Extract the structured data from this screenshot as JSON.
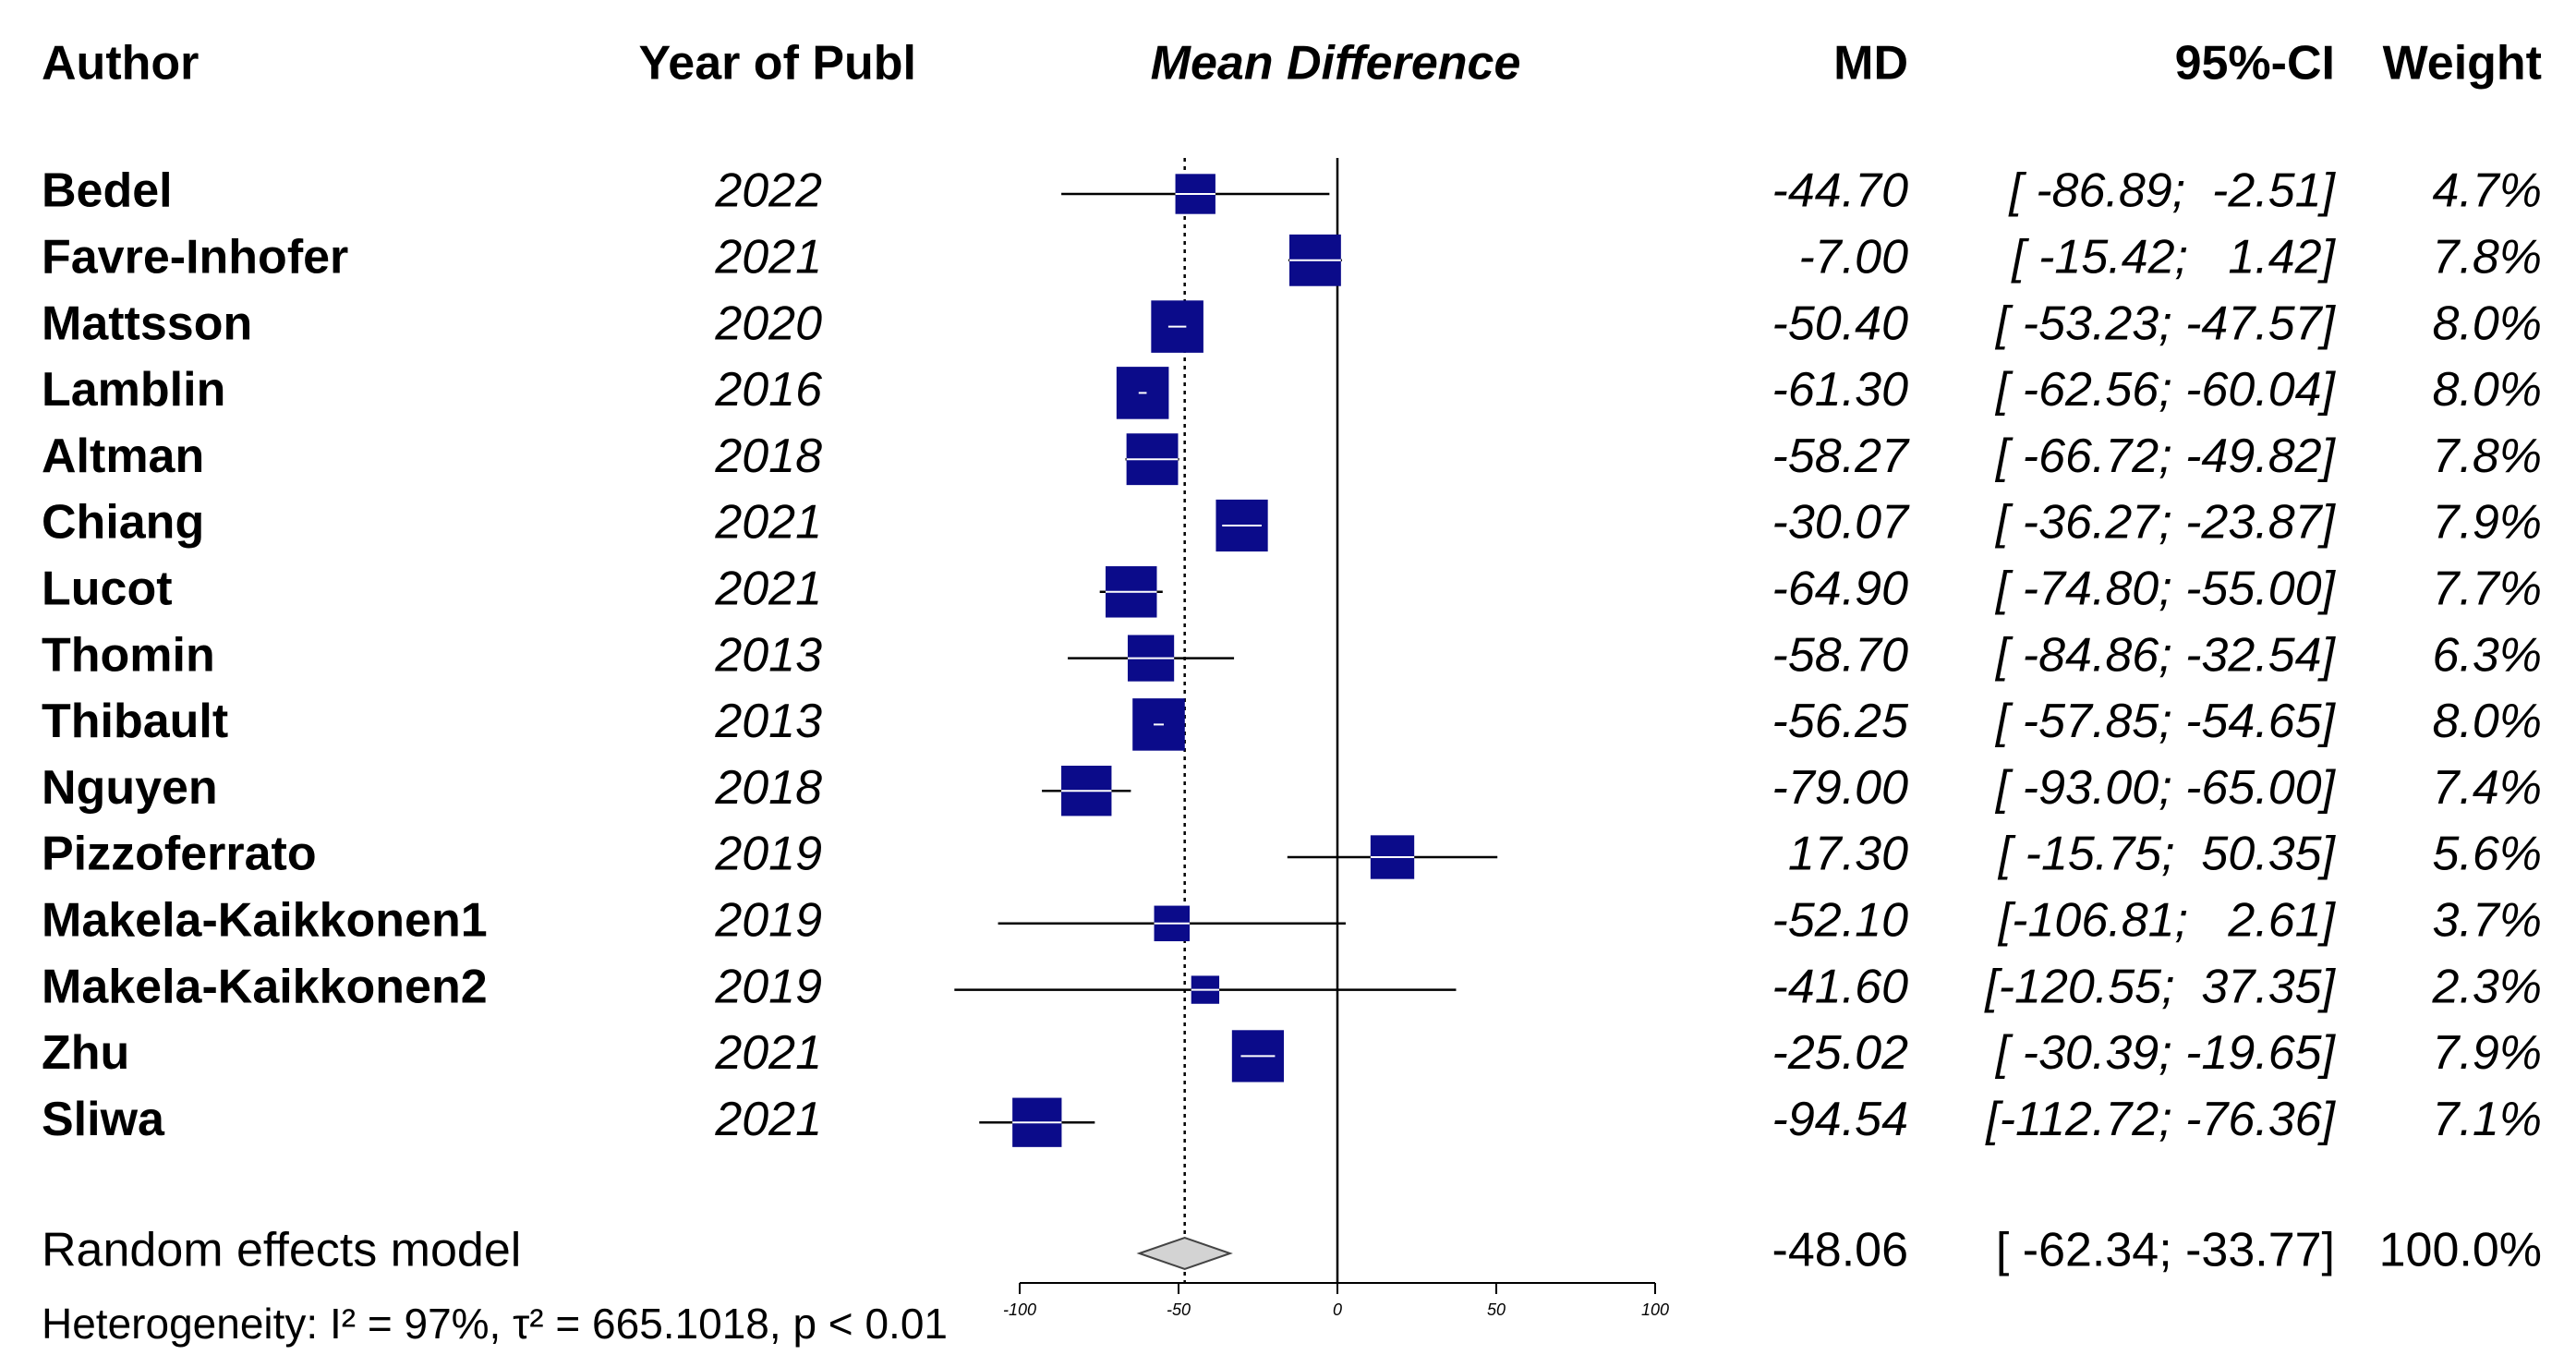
{
  "chart_data": {
    "type": "forest",
    "columns": {
      "author": "Author",
      "year": "Year of Publ",
      "plot": "Mean Difference",
      "md": "MD",
      "ci": "95%-CI",
      "weight": "Weight"
    },
    "categories": [
      "Bedel",
      "Favre-Inhofer",
      "Mattsson",
      "Lamblin",
      "Altman",
      "Chiang",
      "Lucot",
      "Thomin",
      "Thibault",
      "Nguyen",
      "Pizzoferrato",
      "Makela-Kaikkonen1",
      "Makela-Kaikkonen2",
      "Zhu",
      "Sliwa"
    ],
    "years": [
      "2022",
      "2021",
      "2020",
      "2016",
      "2018",
      "2021",
      "2021",
      "2013",
      "2013",
      "2018",
      "2019",
      "2019",
      "2019",
      "2021",
      "2021"
    ],
    "values": [
      -44.7,
      -7.0,
      -50.4,
      -61.3,
      -58.27,
      -30.07,
      -64.9,
      -58.7,
      -56.25,
      -79.0,
      17.3,
      -52.1,
      -41.6,
      -25.02,
      -94.54
    ],
    "value_labels": [
      "-44.70",
      "-7.00",
      "-50.40",
      "-61.30",
      "-58.27",
      "-30.07",
      "-64.90",
      "-58.70",
      "-56.25",
      "-79.00",
      "17.30",
      "-52.10",
      "-41.60",
      "-25.02",
      "-94.54"
    ],
    "ci_lower": [
      -86.89,
      -15.42,
      -53.23,
      -62.56,
      -66.72,
      -36.27,
      -74.8,
      -84.86,
      -57.85,
      -93.0,
      -15.75,
      -106.81,
      -120.55,
      -30.39,
      -112.72
    ],
    "ci_upper": [
      -2.51,
      1.42,
      -47.57,
      -60.04,
      -49.82,
      -23.87,
      -55.0,
      -32.54,
      -54.65,
      -65.0,
      50.35,
      2.61,
      37.35,
      -19.65,
      -76.36
    ],
    "ci_labels": [
      "[ -86.89;  -2.51]",
      "[ -15.42;   1.42]",
      "[ -53.23; -47.57]",
      "[ -62.56; -60.04]",
      "[ -66.72; -49.82]",
      "[ -36.27; -23.87]",
      "[ -74.80; -55.00]",
      "[ -84.86; -32.54]",
      "[ -57.85; -54.65]",
      "[ -93.00; -65.00]",
      "[ -15.75;  50.35]",
      "[-106.81;   2.61]",
      "[-120.55;  37.35]",
      "[ -30.39; -19.65]",
      "[-112.72; -76.36]"
    ],
    "weights": [
      4.7,
      7.8,
      8.0,
      8.0,
      7.8,
      7.9,
      7.7,
      6.3,
      8.0,
      7.4,
      5.6,
      3.7,
      2.3,
      7.9,
      7.1
    ],
    "weight_labels": [
      "4.7%",
      "7.8%",
      "8.0%",
      "8.0%",
      "7.8%",
      "7.9%",
      "7.7%",
      "6.3%",
      "8.0%",
      "7.4%",
      "5.6%",
      "3.7%",
      "2.3%",
      "7.9%",
      "7.1%"
    ],
    "pooled": {
      "label": "Random effects model",
      "value": -48.06,
      "value_label": "-48.06",
      "lower": -62.34,
      "upper": -33.77,
      "ci_label": "[ -62.34; -33.77]",
      "weight": 100.0,
      "weight_label": "100.0%"
    },
    "heterogeneity": "Heterogeneity: I² = 97%, τ² = 665.1018, p < 0.01",
    "color": "#0b0b8a",
    "xlim": [
      -100,
      100
    ],
    "xticks": [
      -100,
      -50,
      0,
      50,
      100
    ]
  }
}
